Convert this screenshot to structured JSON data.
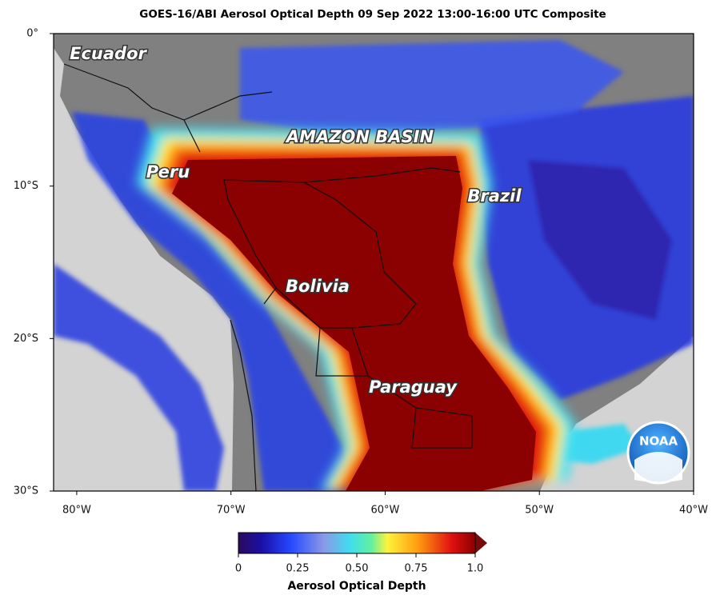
{
  "map": {
    "title": "GOES-16/ABI Aerosol Optical Depth  09 Sep 2022 13:00-16:00 UTC Composite",
    "xlim": [
      -81.5,
      -40
    ],
    "ylim": [
      -30,
      0
    ],
    "xticks": [
      {
        "value": -80,
        "label": "80°W"
      },
      {
        "value": -70,
        "label": "70°W"
      },
      {
        "value": -60,
        "label": "60°W"
      },
      {
        "value": -50,
        "label": "50°W"
      },
      {
        "value": -40,
        "label": "40°W"
      }
    ],
    "yticks": [
      {
        "value": 0,
        "label": "0°"
      },
      {
        "value": -10,
        "label": "10°S"
      },
      {
        "value": -20,
        "label": "20°S"
      },
      {
        "value": -30,
        "label": "30°S"
      }
    ],
    "labels": [
      "Ecuador",
      "AMAZON BASIN",
      "Peru",
      "Brazil",
      "Bolivia",
      "Paraguay"
    ]
  },
  "colorbar": {
    "label": "Aerosol Optical Depth",
    "clim": [
      0,
      1
    ],
    "ticks": [
      0,
      0.25,
      {
        "value": 0.5,
        "label": "0.50"
      },
      0.75,
      {
        "value": 1,
        "label": "1.0"
      }
    ]
  },
  "logo": "NOAA"
}
